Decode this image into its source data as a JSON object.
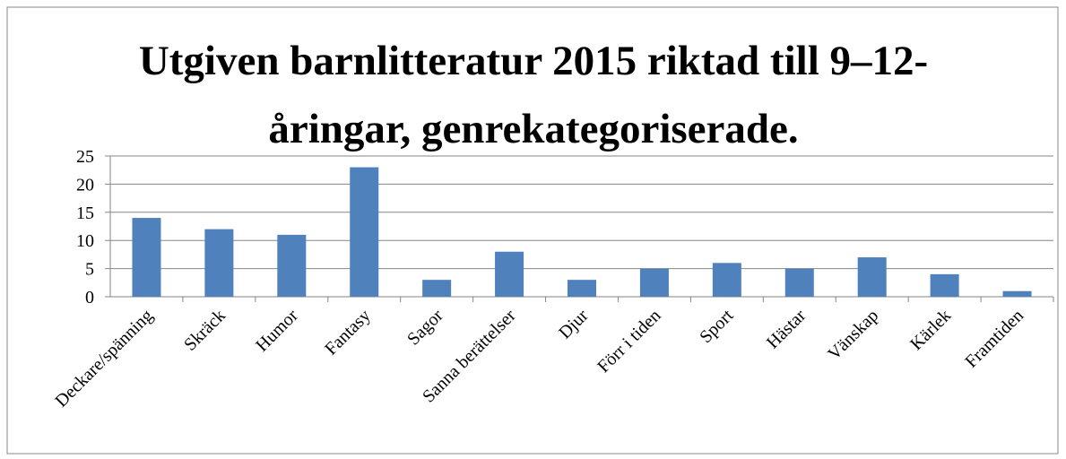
{
  "chart_data": {
    "type": "bar",
    "title": "Utgiven barnlitteratur 2015 riktad till 9–12-åringar, genrekategoriserade.",
    "categories": [
      "Deckare/spänning",
      "Skräck",
      "Humor",
      "Fantasy",
      "Sagor",
      "Sanna berättelser",
      "Djur",
      "Förr i tiden",
      "Sport",
      "Hästar",
      "Vänskap",
      "Kärlek",
      "Framtiden"
    ],
    "values": [
      14,
      12,
      11,
      23,
      3,
      8,
      3,
      5,
      6,
      5,
      7,
      4,
      1
    ],
    "color": "#4f81bd",
    "ylim": [
      0,
      25
    ],
    "yticks": [
      0,
      5,
      10,
      15,
      20,
      25
    ],
    "grid": true
  }
}
